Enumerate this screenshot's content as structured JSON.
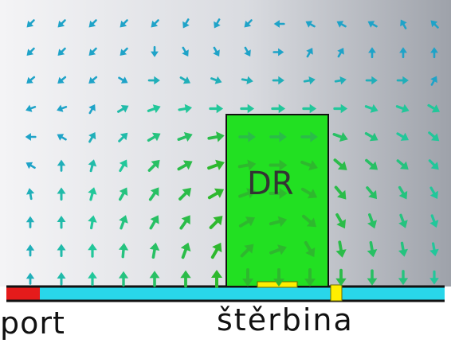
{
  "labels": {
    "port": "port",
    "slot": "štěrbina",
    "resonator": "DR"
  },
  "colors": {
    "background_light": "#f4f4f6",
    "background_dark": "#9ea2aa",
    "resonator_fill": "#22e022",
    "resonator_edge": "#111111",
    "substrate": "#29d6ea",
    "ground_line": "#111111",
    "port": "#e51b1b",
    "slot_marker": "#ffee00",
    "arrow_weak": "#1fa3c8",
    "arrow_medium": "#22c79a",
    "arrow_strong": "#2eb82e"
  },
  "field": {
    "rows": 10,
    "cols": 14,
    "arrow_direction_deg": [
      [
        225,
        225,
        225,
        225,
        225,
        240,
        240,
        225,
        180,
        150,
        150,
        150,
        120,
        135
      ],
      [
        225,
        225,
        225,
        225,
        270,
        300,
        300,
        300,
        0,
        60,
        60,
        90,
        90,
        90
      ],
      [
        220,
        220,
        220,
        330,
        0,
        330,
        340,
        350,
        0,
        10,
        10,
        0,
        0,
        60
      ],
      [
        200,
        200,
        60,
        30,
        20,
        10,
        0,
        0,
        0,
        0,
        0,
        340,
        340,
        330
      ],
      [
        180,
        150,
        60,
        45,
        30,
        20,
        10,
        0,
        0,
        0,
        340,
        330,
        330,
        320
      ],
      [
        150,
        90,
        75,
        60,
        45,
        30,
        20,
        10,
        0,
        340,
        320,
        320,
        320,
        315
      ],
      [
        100,
        90,
        75,
        60,
        55,
        45,
        30,
        20,
        0,
        330,
        310,
        310,
        300,
        300
      ],
      [
        90,
        90,
        80,
        70,
        60,
        55,
        45,
        30,
        15,
        320,
        300,
        290,
        290,
        290
      ],
      [
        90,
        90,
        90,
        85,
        80,
        70,
        60,
        45,
        20,
        300,
        280,
        280,
        280,
        280
      ],
      [
        90,
        90,
        90,
        90,
        90,
        90,
        90,
        270,
        270,
        270,
        270,
        270,
        270,
        270
      ]
    ],
    "arrow_magnitude": [
      [
        0.3,
        0.3,
        0.3,
        0.3,
        0.3,
        0.3,
        0.3,
        0.3,
        0.3,
        0.3,
        0.3,
        0.3,
        0.3,
        0.3
      ],
      [
        0.3,
        0.3,
        0.3,
        0.3,
        0.3,
        0.3,
        0.3,
        0.3,
        0.3,
        0.3,
        0.3,
        0.3,
        0.3,
        0.3
      ],
      [
        0.3,
        0.3,
        0.3,
        0.3,
        0.4,
        0.4,
        0.4,
        0.4,
        0.4,
        0.4,
        0.4,
        0.4,
        0.4,
        0.3
      ],
      [
        0.3,
        0.3,
        0.3,
        0.5,
        0.6,
        0.6,
        0.6,
        0.6,
        0.6,
        0.6,
        0.6,
        0.6,
        0.6,
        0.6
      ],
      [
        0.3,
        0.3,
        0.4,
        0.5,
        0.7,
        0.8,
        0.9,
        0.9,
        0.9,
        0.9,
        0.8,
        0.7,
        0.6,
        0.6
      ],
      [
        0.3,
        0.4,
        0.5,
        0.6,
        0.8,
        0.9,
        1.0,
        1.0,
        1.0,
        1.0,
        0.9,
        0.8,
        0.7,
        0.6
      ],
      [
        0.4,
        0.5,
        0.6,
        0.7,
        0.8,
        0.9,
        1.0,
        1.0,
        1.0,
        1.0,
        0.9,
        0.8,
        0.7,
        0.6
      ],
      [
        0.4,
        0.5,
        0.6,
        0.7,
        0.8,
        0.9,
        1.0,
        1.0,
        1.0,
        1.0,
        0.9,
        0.8,
        0.7,
        0.6
      ],
      [
        0.4,
        0.5,
        0.6,
        0.7,
        0.8,
        0.9,
        1.0,
        1.0,
        1.0,
        1.0,
        0.9,
        0.8,
        0.7,
        0.6
      ],
      [
        0.4,
        0.5,
        0.6,
        0.7,
        0.8,
        0.9,
        1.0,
        1.0,
        1.0,
        1.0,
        0.9,
        0.8,
        0.7,
        0.6
      ]
    ]
  }
}
